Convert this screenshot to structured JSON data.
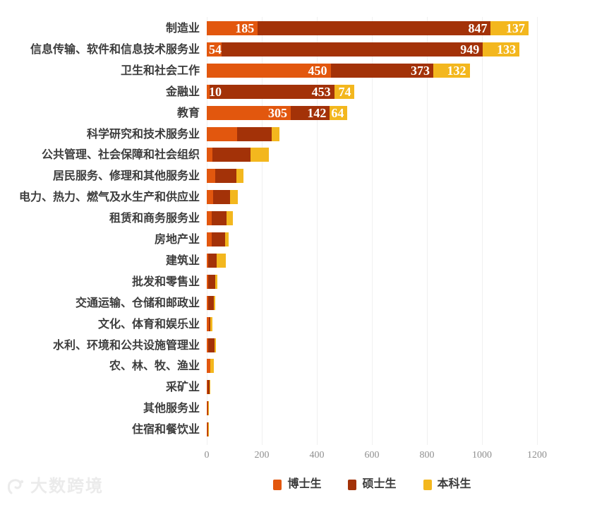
{
  "chart_data": {
    "type": "bar",
    "orientation": "horizontal",
    "stacked": true,
    "title": "",
    "xlabel": "",
    "ylabel": "",
    "xlim": [
      0,
      1200
    ],
    "x_ticks": [
      0,
      200,
      400,
      600,
      800,
      1000,
      1200
    ],
    "grid": "vertical-light",
    "legend_position": "bottom-center",
    "value_labels_rows": 5,
    "categories": [
      "制造业",
      "信息传输、软件和信息技术服务业",
      "卫生和社会工作",
      "金融业",
      "教育",
      "科学研究和技术服务业",
      "公共管理、社会保障和社会组织",
      "居民服务、修理和其他服务业",
      "电力、热力、燃气及水生产和供应业",
      "租赁和商务服务业",
      "房地产业",
      "建筑业",
      "批发和零售业",
      "交通运输、仓储和邮政业",
      "文化、体育和娱乐业",
      "水利、环境和公共设施管理业",
      "农、林、牧、渔业",
      "采矿业",
      "其他服务业",
      "住宿和餐饮业"
    ],
    "series": [
      {
        "name": "博士生",
        "color": "#E2570E",
        "values": [
          185,
          54,
          450,
          10,
          305,
          110,
          20,
          30,
          23,
          19,
          19,
          6,
          5,
          4,
          7,
          4,
          12,
          2,
          3,
          2
        ]
      },
      {
        "name": "硕士生",
        "color": "#A33208",
        "values": [
          847,
          949,
          373,
          453,
          142,
          125,
          140,
          78,
          62,
          54,
          47,
          30,
          26,
          22,
          7,
          25,
          2,
          8,
          2,
          2
        ]
      },
      {
        "name": "本科生",
        "color": "#F3B71E",
        "values": [
          137,
          133,
          132,
          74,
          64,
          30,
          65,
          26,
          29,
          22,
          13,
          34,
          7,
          6,
          8,
          4,
          12,
          2,
          3,
          4
        ]
      }
    ]
  },
  "colors": {
    "background": "#ffffff",
    "category_label": "#3d3d3d",
    "axis_label": "#8f8f8f",
    "gridline": "#f0f0f0",
    "value_label": "#ffffff"
  },
  "watermark": {
    "text": "大数跨境"
  }
}
